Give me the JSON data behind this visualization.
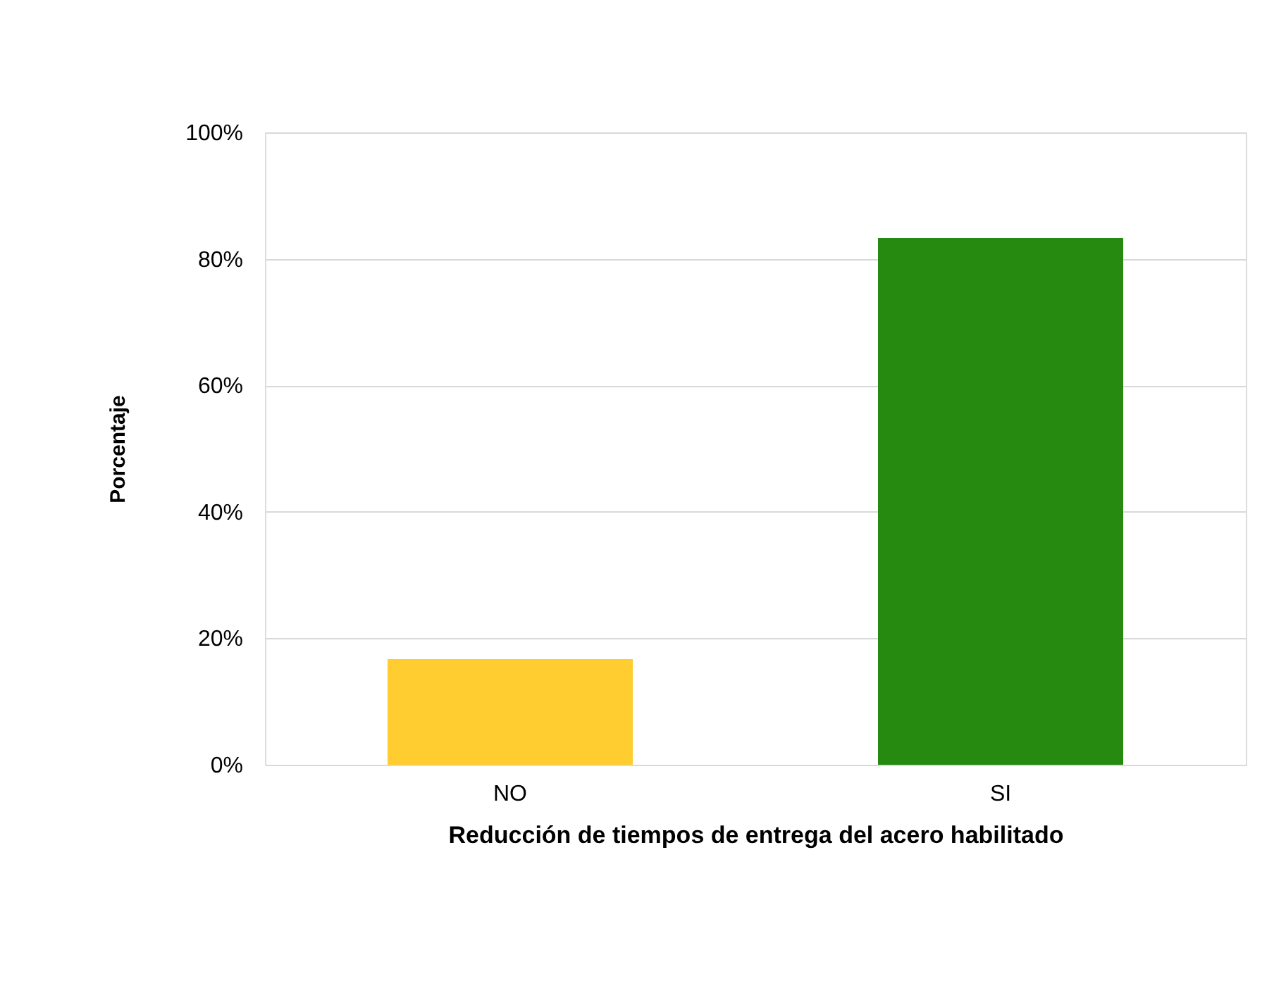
{
  "chart_data": {
    "type": "bar",
    "xlabel": "Reducción de tiempos de entrega del acero habilitado",
    "ylabel": "Porcentaje",
    "categories": [
      "NO",
      "SI"
    ],
    "values": [
      16.7,
      83.3
    ],
    "colors": [
      "#ffcd2f",
      "#268a10"
    ],
    "ylim": [
      0,
      100
    ],
    "yticks": [
      {
        "value": 0,
        "label": "0%"
      },
      {
        "value": 20,
        "label": "20%"
      },
      {
        "value": 40,
        "label": "40%"
      },
      {
        "value": 60,
        "label": "60%"
      },
      {
        "value": 80,
        "label": "80%"
      },
      {
        "value": 100,
        "label": "100%"
      }
    ],
    "grid": "y",
    "legend": false
  }
}
